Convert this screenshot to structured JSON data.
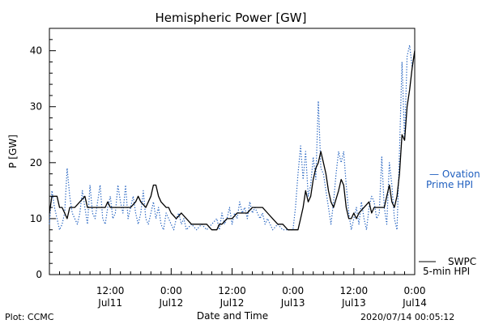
{
  "chart_data": {
    "type": "line",
    "title": "Hemispheric Power [GW]",
    "xlabel": "Date and Time",
    "ylabel": "P [GW]",
    "ylim": [
      0,
      44
    ],
    "yticks": [
      0,
      10,
      20,
      30,
      40
    ],
    "xlim_hours": [
      0,
      72
    ],
    "x_unit": "hours since 2020/07/11 00:00",
    "xticks": [
      {
        "hour": 12,
        "line1": "12:00",
        "line2": "Jul11"
      },
      {
        "hour": 24,
        "line1": "0:00",
        "line2": "Jul12"
      },
      {
        "hour": 36,
        "line1": "12:00",
        "line2": "Jul12"
      },
      {
        "hour": 48,
        "line1": "0:00",
        "line2": "Jul13"
      },
      {
        "hour": 60,
        "line1": "12:00",
        "line2": "Jul13"
      },
      {
        "hour": 72,
        "line1": "0:00",
        "line2": "Jul14"
      }
    ],
    "grid": false,
    "legend_position": "right",
    "series": [
      {
        "name": "SWPC 5-min HPI",
        "label_lines": [
          "SWPC",
          "5-min HPI"
        ],
        "color": "#000000",
        "style": "solid",
        "points": [
          [
            0,
            11
          ],
          [
            0.5,
            14
          ],
          [
            1.5,
            14
          ],
          [
            2,
            12
          ],
          [
            2.5,
            12
          ],
          [
            3,
            11
          ],
          [
            3.5,
            10
          ],
          [
            4,
            12
          ],
          [
            5,
            12
          ],
          [
            6,
            13
          ],
          [
            7,
            14
          ],
          [
            7.5,
            12
          ],
          [
            8,
            12
          ],
          [
            9,
            12
          ],
          [
            10,
            12
          ],
          [
            11,
            12
          ],
          [
            11.5,
            13
          ],
          [
            12,
            12
          ],
          [
            13,
            12
          ],
          [
            14,
            12
          ],
          [
            15,
            12
          ],
          [
            16,
            12
          ],
          [
            17,
            13
          ],
          [
            17.5,
            14
          ],
          [
            18,
            13
          ],
          [
            19,
            12
          ],
          [
            20,
            14
          ],
          [
            20.5,
            16
          ],
          [
            21,
            16
          ],
          [
            21.5,
            14
          ],
          [
            22,
            13
          ],
          [
            23,
            12
          ],
          [
            23.5,
            12
          ],
          [
            24,
            11
          ],
          [
            25,
            10
          ],
          [
            26,
            11
          ],
          [
            27,
            10
          ],
          [
            28,
            9
          ],
          [
            29,
            9
          ],
          [
            30,
            9
          ],
          [
            31,
            9
          ],
          [
            32,
            8
          ],
          [
            33,
            8
          ],
          [
            33.5,
            9
          ],
          [
            34,
            9
          ],
          [
            35,
            10
          ],
          [
            36,
            10
          ],
          [
            37,
            11
          ],
          [
            38,
            11
          ],
          [
            39,
            11
          ],
          [
            40,
            12
          ],
          [
            41,
            12
          ],
          [
            42,
            12
          ],
          [
            43,
            11
          ],
          [
            44,
            10
          ],
          [
            45,
            9
          ],
          [
            46,
            9
          ],
          [
            47,
            8
          ],
          [
            48,
            8
          ],
          [
            48.5,
            8
          ],
          [
            49,
            8
          ],
          [
            49.5,
            10
          ],
          [
            50,
            12
          ],
          [
            50.5,
            15
          ],
          [
            51,
            13
          ],
          [
            51.5,
            14
          ],
          [
            52,
            17
          ],
          [
            52.5,
            19
          ],
          [
            53,
            20
          ],
          [
            53.5,
            22
          ],
          [
            54,
            20
          ],
          [
            54.5,
            18
          ],
          [
            55,
            15
          ],
          [
            55.5,
            13
          ],
          [
            56,
            12
          ],
          [
            57,
            15
          ],
          [
            57.5,
            17
          ],
          [
            58,
            16
          ],
          [
            58.5,
            12
          ],
          [
            59,
            10
          ],
          [
            59.5,
            10
          ],
          [
            60,
            11
          ],
          [
            60.5,
            10
          ],
          [
            61,
            11
          ],
          [
            62,
            12
          ],
          [
            63,
            13
          ],
          [
            63.5,
            11
          ],
          [
            64,
            12
          ],
          [
            64.5,
            12
          ],
          [
            65,
            12
          ],
          [
            66,
            12
          ],
          [
            66.5,
            14
          ],
          [
            67,
            16
          ],
          [
            67.5,
            13
          ],
          [
            68,
            12
          ],
          [
            68.5,
            14
          ],
          [
            69,
            18
          ],
          [
            69.5,
            25
          ],
          [
            70,
            24
          ],
          [
            70.5,
            30
          ],
          [
            71,
            33
          ],
          [
            71.5,
            37
          ],
          [
            72,
            40
          ]
        ]
      },
      {
        "name": "Ovation Prime HPI",
        "label_lines": [
          "— Ovation",
          "Prime HPI"
        ],
        "color": "#1f5fbf",
        "style": "dotted",
        "points": [
          [
            0,
            9
          ],
          [
            0.5,
            15
          ],
          [
            1,
            12
          ],
          [
            1.5,
            10
          ],
          [
            2,
            8
          ],
          [
            2.5,
            9
          ],
          [
            3,
            11
          ],
          [
            3.5,
            19
          ],
          [
            4,
            14
          ],
          [
            4.5,
            11
          ],
          [
            5,
            10
          ],
          [
            5.5,
            9
          ],
          [
            6,
            11
          ],
          [
            6.5,
            15
          ],
          [
            7,
            12
          ],
          [
            7.5,
            9
          ],
          [
            8,
            16
          ],
          [
            8.5,
            11
          ],
          [
            9,
            10
          ],
          [
            9.5,
            13
          ],
          [
            10,
            16
          ],
          [
            10.5,
            10
          ],
          [
            11,
            9
          ],
          [
            11.5,
            12
          ],
          [
            12,
            14
          ],
          [
            12.5,
            10
          ],
          [
            13,
            11
          ],
          [
            13.5,
            16
          ],
          [
            14,
            13
          ],
          [
            14.5,
            11
          ],
          [
            15,
            16
          ],
          [
            15.5,
            10
          ],
          [
            16,
            12
          ],
          [
            16.5,
            14
          ],
          [
            17,
            11
          ],
          [
            17.5,
            9
          ],
          [
            18,
            11
          ],
          [
            18.5,
            15
          ],
          [
            19,
            10
          ],
          [
            19.5,
            9
          ],
          [
            20,
            11
          ],
          [
            20.5,
            13
          ],
          [
            21,
            10
          ],
          [
            21.5,
            12
          ],
          [
            22,
            9
          ],
          [
            22.5,
            8
          ],
          [
            23,
            11
          ],
          [
            23.5,
            10
          ],
          [
            24,
            9
          ],
          [
            24.5,
            8
          ],
          [
            25,
            10
          ],
          [
            25.5,
            11
          ],
          [
            26,
            9
          ],
          [
            26.5,
            10
          ],
          [
            27,
            8
          ],
          [
            28,
            9
          ],
          [
            29,
            8
          ],
          [
            30,
            9
          ],
          [
            31,
            8
          ],
          [
            32,
            9
          ],
          [
            33,
            10
          ],
          [
            33.5,
            8
          ],
          [
            34,
            11
          ],
          [
            34.5,
            9
          ],
          [
            35,
            10
          ],
          [
            35.5,
            12
          ],
          [
            36,
            9
          ],
          [
            36.5,
            11
          ],
          [
            37,
            10
          ],
          [
            37.5,
            13
          ],
          [
            38,
            11
          ],
          [
            38.5,
            12
          ],
          [
            39,
            10
          ],
          [
            39.5,
            13
          ],
          [
            40,
            11
          ],
          [
            40.5,
            12
          ],
          [
            41,
            11
          ],
          [
            41.5,
            10
          ],
          [
            42,
            11
          ],
          [
            42.5,
            9
          ],
          [
            43,
            10
          ],
          [
            43.5,
            9
          ],
          [
            44,
            8
          ],
          [
            45,
            9
          ],
          [
            46,
            8
          ],
          [
            47,
            8
          ],
          [
            48,
            8
          ],
          [
            48.5,
            12
          ],
          [
            49,
            18
          ],
          [
            49.5,
            23
          ],
          [
            50,
            17
          ],
          [
            50.5,
            22
          ],
          [
            51,
            14
          ],
          [
            51.5,
            16
          ],
          [
            52,
            21
          ],
          [
            52.5,
            17
          ],
          [
            53,
            31
          ],
          [
            53.5,
            19
          ],
          [
            54,
            18
          ],
          [
            54.5,
            15
          ],
          [
            55,
            12
          ],
          [
            55.5,
            9
          ],
          [
            56,
            13
          ],
          [
            56.5,
            18
          ],
          [
            57,
            22
          ],
          [
            57.5,
            20
          ],
          [
            58,
            22
          ],
          [
            58.5,
            16
          ],
          [
            59,
            11
          ],
          [
            59.5,
            8
          ],
          [
            60,
            10
          ],
          [
            60.5,
            12
          ],
          [
            61,
            9
          ],
          [
            61.5,
            13
          ],
          [
            62,
            10
          ],
          [
            62.5,
            8
          ],
          [
            63,
            12
          ],
          [
            63.5,
            14
          ],
          [
            64,
            13
          ],
          [
            64.5,
            10
          ],
          [
            65,
            11
          ],
          [
            65.5,
            21
          ],
          [
            66,
            12
          ],
          [
            66.5,
            9
          ],
          [
            67,
            20
          ],
          [
            67.5,
            16
          ],
          [
            68,
            10
          ],
          [
            68.5,
            8
          ],
          [
            69,
            22
          ],
          [
            69.5,
            38
          ],
          [
            70,
            24
          ],
          [
            70.5,
            39
          ],
          [
            71,
            41
          ],
          [
            71.5,
            37
          ],
          [
            72,
            40
          ]
        ]
      }
    ]
  },
  "footer": {
    "plot_credit": "Plot: CCMC",
    "timestamp": "2020/07/14 00:05:12"
  }
}
